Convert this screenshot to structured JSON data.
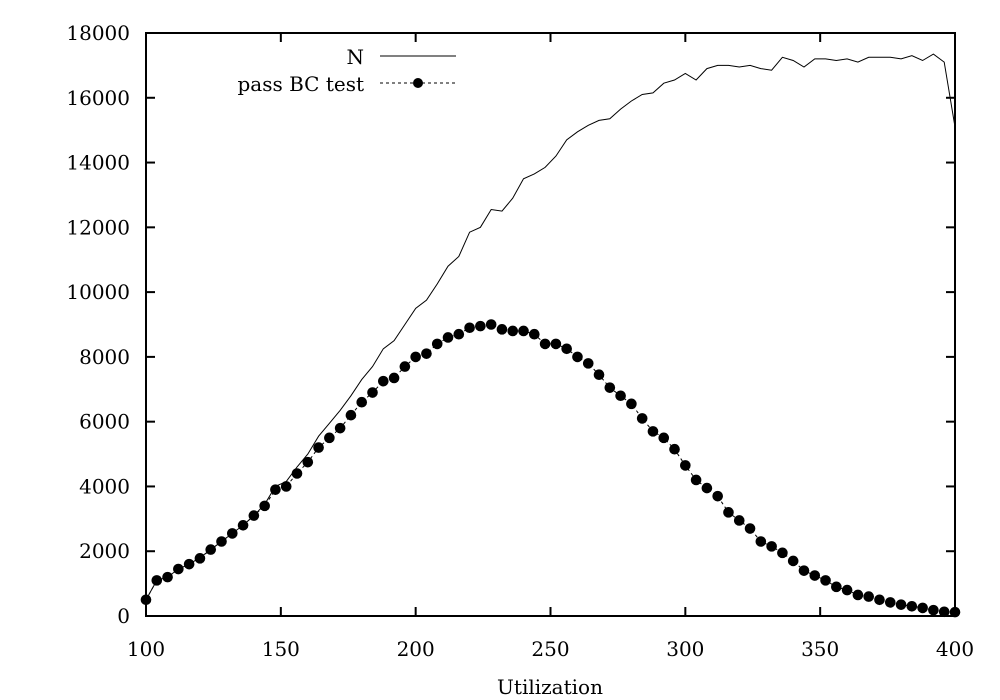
{
  "chart_data": {
    "type": "line",
    "title": "",
    "xlabel": "Utilization",
    "ylabel": "",
    "xlim": [
      100,
      400
    ],
    "ylim": [
      0,
      18000
    ],
    "xticks": [
      100,
      150,
      200,
      250,
      300,
      350,
      400
    ],
    "yticks": [
      0,
      2000,
      4000,
      6000,
      8000,
      10000,
      12000,
      14000,
      16000,
      18000
    ],
    "grid": false,
    "legend_position": "top-center",
    "x": [
      100,
      104,
      108,
      112,
      116,
      120,
      124,
      128,
      132,
      136,
      140,
      144,
      148,
      152,
      156,
      160,
      164,
      168,
      172,
      176,
      180,
      184,
      188,
      192,
      196,
      200,
      204,
      208,
      212,
      216,
      220,
      224,
      228,
      232,
      236,
      240,
      244,
      248,
      252,
      256,
      260,
      264,
      268,
      272,
      276,
      280,
      284,
      288,
      292,
      296,
      300,
      304,
      308,
      312,
      316,
      320,
      324,
      328,
      332,
      336,
      340,
      344,
      348,
      352,
      356,
      360,
      364,
      368,
      372,
      376,
      380,
      384,
      388,
      392,
      396,
      400
    ],
    "series": [
      {
        "name": "N",
        "style": "solid-line",
        "values": [
          500,
          1100,
          1200,
          1450,
          1600,
          1800,
          2050,
          2300,
          2550,
          2800,
          3100,
          3450,
          4000,
          4150,
          4600,
          5000,
          5550,
          5950,
          6350,
          6800,
          7300,
          7700,
          8250,
          8500,
          9000,
          9500,
          9750,
          10250,
          10800,
          11100,
          11850,
          12000,
          12550,
          12500,
          12900,
          13500,
          13650,
          13850,
          14200,
          14700,
          14950,
          15150,
          15300,
          15350,
          15650,
          15900,
          16100,
          16150,
          16450,
          16550,
          16750,
          16550,
          16900,
          17000,
          17000,
          16950,
          17000,
          16900,
          16850,
          17250,
          17150,
          16950,
          17200,
          17200,
          17150,
          17200,
          17100,
          17250,
          17250,
          17250,
          17200,
          17300,
          17150,
          17350,
          17100,
          15100
        ]
      },
      {
        "name": "pass BC test",
        "style": "dashed-line-with-dots",
        "values": [
          500,
          1100,
          1200,
          1450,
          1600,
          1780,
          2050,
          2300,
          2550,
          2800,
          3100,
          3400,
          3900,
          4000,
          4400,
          4750,
          5200,
          5500,
          5800,
          6200,
          6600,
          6900,
          7250,
          7350,
          7700,
          8000,
          8100,
          8400,
          8600,
          8700,
          8900,
          8950,
          9000,
          8850,
          8800,
          8800,
          8700,
          8400,
          8400,
          8250,
          8000,
          7800,
          7450,
          7050,
          6800,
          6550,
          6100,
          5700,
          5500,
          5150,
          4650,
          4200,
          3950,
          3700,
          3200,
          2950,
          2700,
          2300,
          2150,
          1950,
          1700,
          1400,
          1250,
          1100,
          900,
          800,
          650,
          600,
          500,
          420,
          350,
          300,
          250,
          180,
          130,
          120
        ]
      }
    ]
  }
}
